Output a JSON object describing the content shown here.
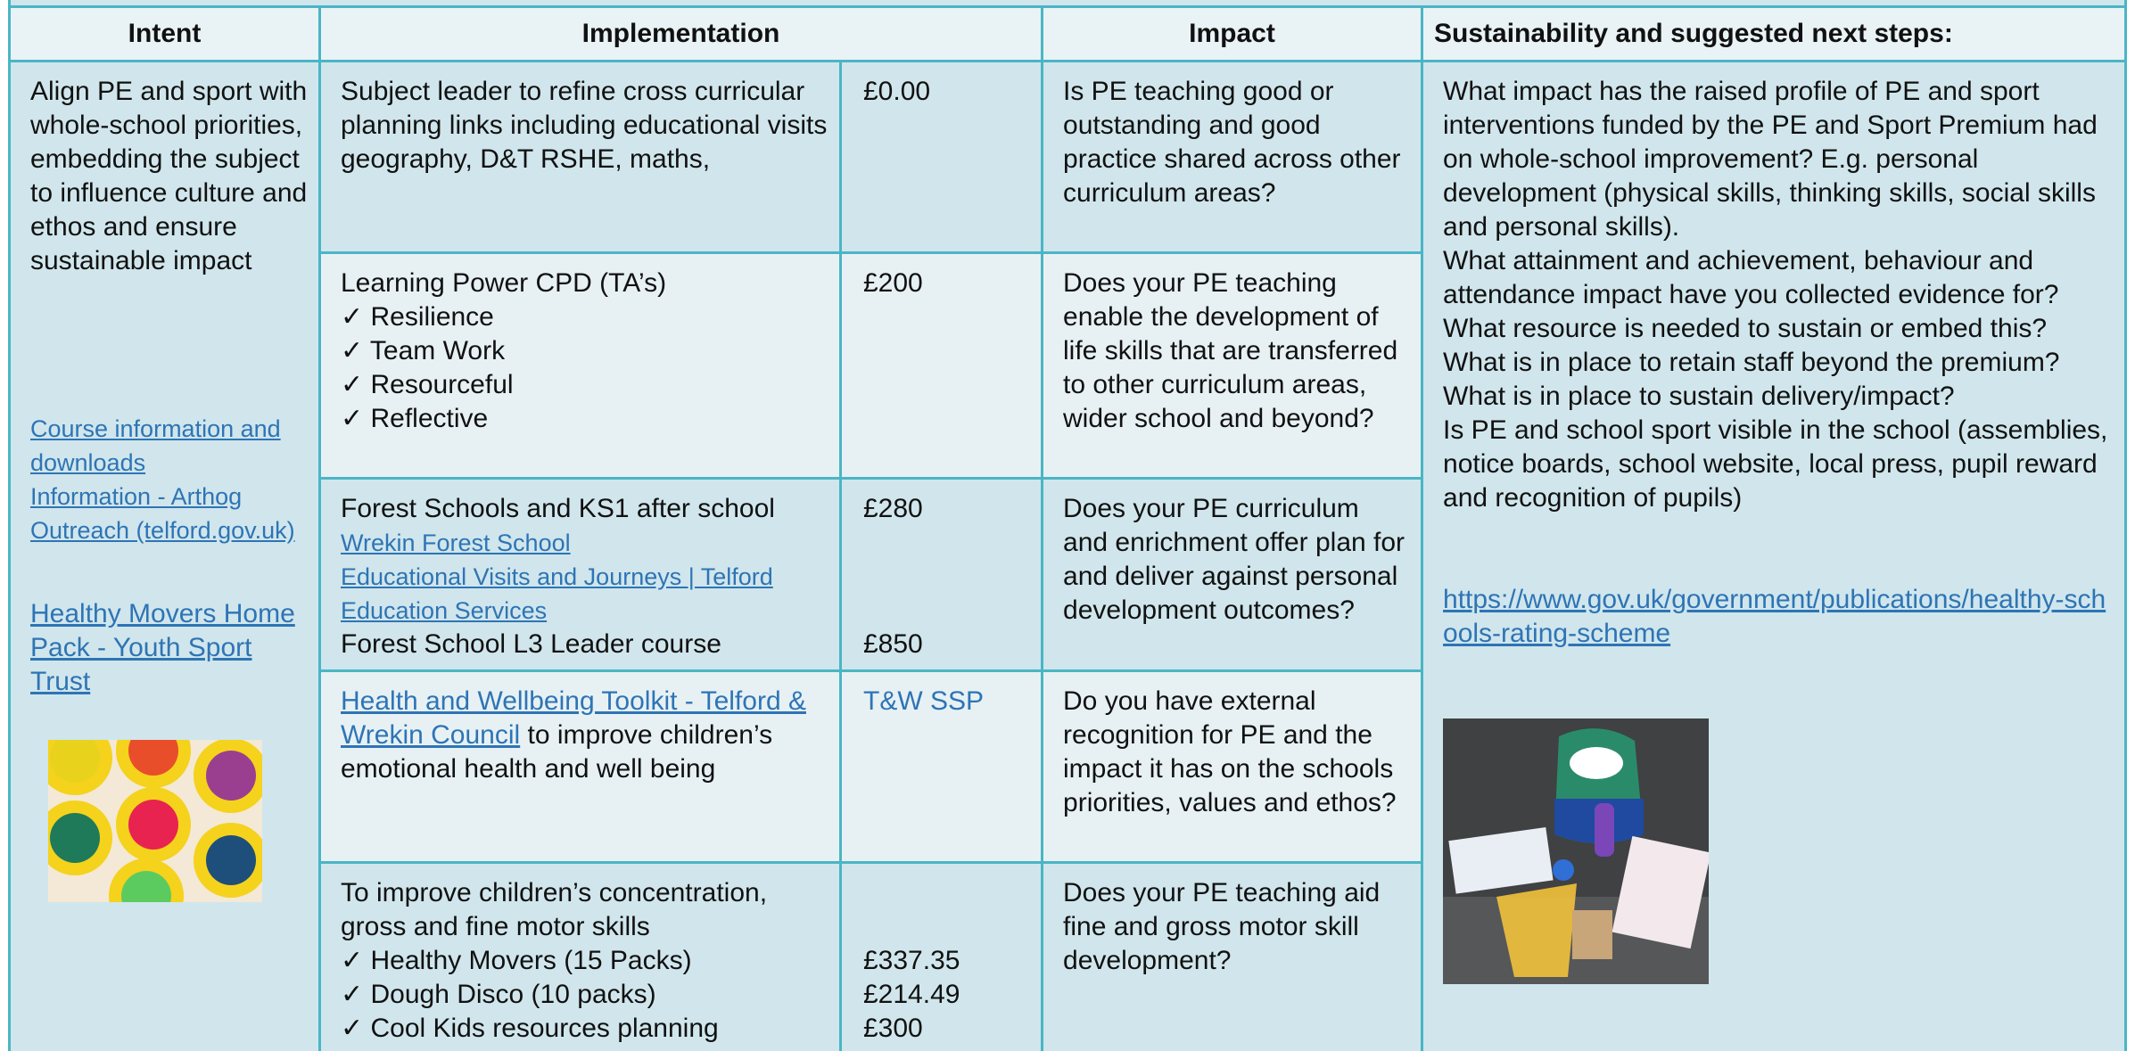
{
  "header": {
    "intent": "Intent",
    "implementation": "Implementation",
    "impact": "Impact",
    "sustainability": "Sustainability and suggested next steps:"
  },
  "intent": {
    "text": "Align PE and sport with whole-school priorities, embedding the subject to influence culture and ethos and ensure sustainable impact",
    "links": [
      "Course information and downloads",
      "Information - Arthog Outreach (telford.gov.uk)",
      "Healthy Movers Home Pack - Youth Sport Trust"
    ]
  },
  "rows": [
    {
      "implementation": "Subject leader to refine cross curricular planning links including educational visits geography, D&T RSHE, maths,",
      "cost": "£0.00",
      "impact": "Is PE teaching good or outstanding and good practice shared across other curriculum areas?"
    },
    {
      "implementation": [
        "Learning Power CPD (TA’s)",
        "✓ Resilience",
        "✓ Team Work",
        "✓ Resourceful",
        "✓ Reflective"
      ],
      "cost": "£200",
      "impact": "Does your PE teaching enable the development of life skills that are transferred to other curriculum areas, wider school and beyond?"
    },
    {
      "implementation": [
        "Forest Schools and KS1 after school",
        "Wrekin Forest School",
        "Educational Visits and Journeys | Telford Education Services",
        "Forest School L3 Leader course"
      ],
      "cost": [
        "£280",
        "£850"
      ],
      "impact": "Does your PE curriculum and enrichment offer plan for and deliver against personal development outcomes?"
    },
    {
      "implementation": [
        "Health and Wellbeing Toolkit - Telford & Wrekin Council",
        " to improve children’s emotional health and well being"
      ],
      "cost": "T&W SSP",
      "impact": "Do you have external recognition for PE and the impact it has on the schools priorities, values and ethos?"
    },
    {
      "implementation": [
        "To improve children’s concentration, gross and fine motor skills",
        "✓ Healthy Movers (15 Packs)",
        "✓ Dough Disco (10 packs)",
        "✓ Cool Kids  resources planning"
      ],
      "cost": [
        "£337.35",
        "£214.49",
        "£300"
      ],
      "impact": "Does your PE teaching aid fine and gross motor skill development?"
    }
  ],
  "sustainability": {
    "questions": [
      "What impact has the raised profile of PE and sport interventions funded by the PE and Sport Premium had on whole-school improvement? E.g. personal development (physical skills, thinking skills, social skills and personal skills).",
      "What attainment and achievement, behaviour and attendance impact have you collected evidence for?",
      "What resource is needed to sustain or embed this?",
      "What is in place to retain staff beyond the premium?",
      "What is in place to sustain delivery/impact?",
      "Is PE and school sport visible in the school (assemblies, notice boards, school website, local press, pupil reward and recognition of pupils)"
    ],
    "link": "https://www.gov.uk/government/publications/healthy-schools-rating-scheme"
  }
}
